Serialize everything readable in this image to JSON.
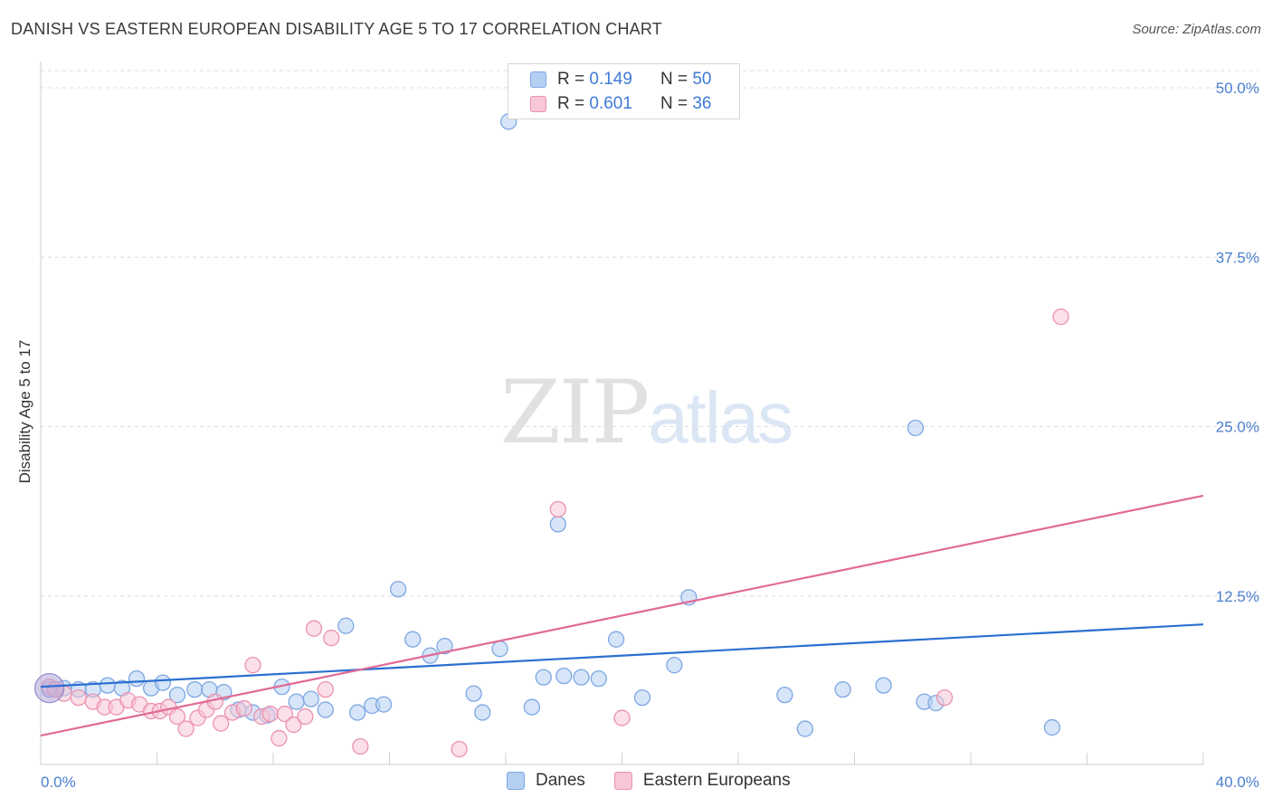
{
  "title": "DANISH VS EASTERN EUROPEAN DISABILITY AGE 5 TO 17 CORRELATION CHART",
  "source": "Source: ZipAtlas.com",
  "watermark": {
    "zip": "ZIP",
    "atlas": "atlas"
  },
  "legend": {
    "series1": {
      "r_label": "R =",
      "r_value": "0.149",
      "n_label": "N =",
      "n_value": "50"
    },
    "series2": {
      "r_label": "R =",
      "r_value": "0.601",
      "n_label": "N =",
      "n_value": "36"
    }
  },
  "colors": {
    "danes_fill": "#b5cff3",
    "danes_stroke": "#7ea7e3",
    "danes_line": "#2a6fd1",
    "ee_fill": "#f8c6d6",
    "ee_stroke": "#ec92b1",
    "ee_line": "#e06a96",
    "tick_label": "#4a7fcf",
    "grid": "#dcdcdc"
  },
  "chart_data": {
    "type": "scatter",
    "title": "DANISH VS EASTERN EUROPEAN DISABILITY AGE 5 TO 17 CORRELATION CHART",
    "xlabel": "",
    "ylabel": "Disability Age 5 to 17",
    "xlim": [
      0,
      40
    ],
    "ylim": [
      0,
      50
    ],
    "x_tick_labels": [
      "0.0%",
      "40.0%"
    ],
    "y_ticks": [
      12.5,
      25.0,
      37.5,
      50.0
    ],
    "y_tick_labels": [
      "12.5%",
      "25.0%",
      "37.5%",
      "50.0%"
    ],
    "grid": "horizontal dashed",
    "legend_position": "top-center",
    "series": [
      {
        "name": "Danes",
        "r": 0.149,
        "n": 50,
        "trend": {
          "x": [
            0,
            40
          ],
          "y": [
            5.8,
            10.4
          ]
        },
        "points": [
          {
            "x": 0.3,
            "y": 5.6
          },
          {
            "x": 0.8,
            "y": 5.7
          },
          {
            "x": 1.3,
            "y": 5.6
          },
          {
            "x": 1.8,
            "y": 5.6
          },
          {
            "x": 2.3,
            "y": 5.9
          },
          {
            "x": 2.8,
            "y": 5.7
          },
          {
            "x": 3.3,
            "y": 6.4
          },
          {
            "x": 3.8,
            "y": 5.7
          },
          {
            "x": 4.2,
            "y": 6.1
          },
          {
            "x": 4.7,
            "y": 5.2
          },
          {
            "x": 5.3,
            "y": 5.6
          },
          {
            "x": 5.8,
            "y": 5.6
          },
          {
            "x": 6.3,
            "y": 5.4
          },
          {
            "x": 6.8,
            "y": 4.1
          },
          {
            "x": 7.3,
            "y": 3.9
          },
          {
            "x": 7.8,
            "y": 3.7
          },
          {
            "x": 8.3,
            "y": 5.8
          },
          {
            "x": 8.8,
            "y": 4.7
          },
          {
            "x": 9.3,
            "y": 4.9
          },
          {
            "x": 9.8,
            "y": 4.1
          },
          {
            "x": 10.5,
            "y": 10.3
          },
          {
            "x": 10.9,
            "y": 3.9
          },
          {
            "x": 11.4,
            "y": 4.4
          },
          {
            "x": 11.8,
            "y": 4.5
          },
          {
            "x": 12.3,
            "y": 13.0
          },
          {
            "x": 12.8,
            "y": 9.3
          },
          {
            "x": 13.4,
            "y": 8.1
          },
          {
            "x": 13.9,
            "y": 8.8
          },
          {
            "x": 14.9,
            "y": 5.3
          },
          {
            "x": 15.2,
            "y": 3.9
          },
          {
            "x": 15.8,
            "y": 8.6
          },
          {
            "x": 16.1,
            "y": 47.5
          },
          {
            "x": 16.9,
            "y": 4.3
          },
          {
            "x": 17.3,
            "y": 6.5
          },
          {
            "x": 17.8,
            "y": 17.8
          },
          {
            "x": 18.0,
            "y": 6.6
          },
          {
            "x": 18.6,
            "y": 6.5
          },
          {
            "x": 19.2,
            "y": 6.4
          },
          {
            "x": 19.8,
            "y": 9.3
          },
          {
            "x": 20.7,
            "y": 5.0
          },
          {
            "x": 21.8,
            "y": 7.4
          },
          {
            "x": 22.3,
            "y": 12.4
          },
          {
            "x": 25.6,
            "y": 5.2
          },
          {
            "x": 26.3,
            "y": 2.7
          },
          {
            "x": 27.6,
            "y": 5.6
          },
          {
            "x": 29.0,
            "y": 5.9
          },
          {
            "x": 30.1,
            "y": 24.9
          },
          {
            "x": 30.4,
            "y": 4.7
          },
          {
            "x": 30.8,
            "y": 4.6
          },
          {
            "x": 34.8,
            "y": 2.8
          }
        ]
      },
      {
        "name": "Eastern Europeans",
        "r": 0.601,
        "n": 36,
        "trend": {
          "x": [
            0,
            40
          ],
          "y": [
            2.2,
            19.9
          ]
        },
        "points": [
          {
            "x": 0.3,
            "y": 5.8
          },
          {
            "x": 0.8,
            "y": 5.3
          },
          {
            "x": 1.3,
            "y": 5.0
          },
          {
            "x": 1.8,
            "y": 4.7
          },
          {
            "x": 2.2,
            "y": 4.3
          },
          {
            "x": 2.6,
            "y": 4.3
          },
          {
            "x": 3.0,
            "y": 4.8
          },
          {
            "x": 3.4,
            "y": 4.5
          },
          {
            "x": 3.8,
            "y": 4.0
          },
          {
            "x": 4.1,
            "y": 4.0
          },
          {
            "x": 4.4,
            "y": 4.3
          },
          {
            "x": 4.7,
            "y": 3.6
          },
          {
            "x": 5.0,
            "y": 2.7
          },
          {
            "x": 5.4,
            "y": 3.5
          },
          {
            "x": 5.7,
            "y": 4.1
          },
          {
            "x": 6.0,
            "y": 4.7
          },
          {
            "x": 6.2,
            "y": 3.1
          },
          {
            "x": 6.6,
            "y": 3.9
          },
          {
            "x": 7.0,
            "y": 4.2
          },
          {
            "x": 7.3,
            "y": 7.4
          },
          {
            "x": 7.6,
            "y": 3.6
          },
          {
            "x": 7.9,
            "y": 3.8
          },
          {
            "x": 8.2,
            "y": 2.0
          },
          {
            "x": 8.4,
            "y": 3.8
          },
          {
            "x": 8.7,
            "y": 3.0
          },
          {
            "x": 9.1,
            "y": 3.6
          },
          {
            "x": 9.4,
            "y": 10.1
          },
          {
            "x": 9.8,
            "y": 5.6
          },
          {
            "x": 10.0,
            "y": 9.4
          },
          {
            "x": 11.0,
            "y": 1.4
          },
          {
            "x": 14.4,
            "y": 1.2
          },
          {
            "x": 17.8,
            "y": 18.9
          },
          {
            "x": 20.0,
            "y": 3.5
          },
          {
            "x": 31.1,
            "y": 5.0
          },
          {
            "x": 35.1,
            "y": 33.1
          },
          {
            "x": 0.5,
            "y": 5.6
          }
        ]
      }
    ]
  },
  "bottom_legend": {
    "item1": "Danes",
    "item2": "Eastern Europeans"
  }
}
